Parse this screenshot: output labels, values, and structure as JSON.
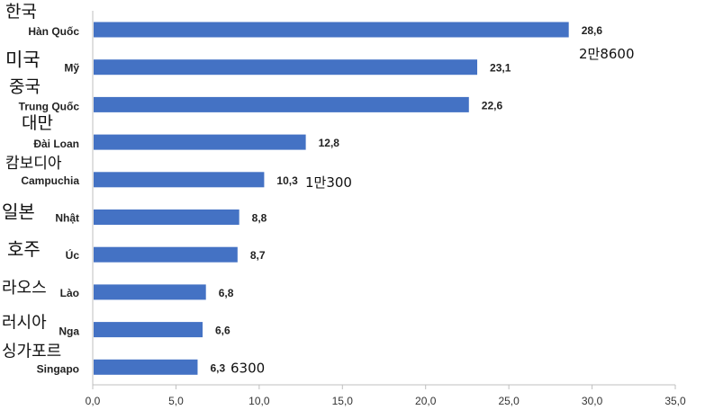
{
  "chart_data": {
    "type": "bar",
    "orientation": "horizontal",
    "categories": [
      "Hàn Quốc",
      "Mỹ",
      "Trung Quốc",
      "Đài Loan",
      "Campuchia",
      "Nhật",
      "Úc",
      "Lào",
      "Nga",
      "Singapo"
    ],
    "categories_ko": [
      "한국",
      "미국",
      "중국",
      "대만",
      "캄보디아",
      "일본",
      "호주",
      "라오스",
      "러시아",
      "싱가포르"
    ],
    "values": [
      28.6,
      23.1,
      22.6,
      12.8,
      10.3,
      8.8,
      8.7,
      6.8,
      6.6,
      6.3
    ],
    "value_labels": [
      "28,6",
      "23,1",
      "22,6",
      "12,8",
      "10,3",
      "8,8",
      "8,7",
      "6,8",
      "6,6",
      "6,3"
    ],
    "annotations": [
      {
        "category_index": 0,
        "text": "2만8600"
      },
      {
        "category_index": 4,
        "text": "1만300"
      },
      {
        "category_index": 9,
        "text": "6300"
      }
    ],
    "xlim": [
      0,
      35
    ],
    "xticks": [
      0,
      5,
      10,
      15,
      20,
      25,
      30,
      35
    ],
    "xtick_labels": [
      "0,0",
      "5,0",
      "10,0",
      "15,0",
      "20,0",
      "25,0",
      "30,0",
      "35,0"
    ],
    "grid": false,
    "legend": "none",
    "title": "",
    "xlabel": "",
    "ylabel": "",
    "bar_color": "#4472C4",
    "axis_color": "#BFBFBF"
  }
}
